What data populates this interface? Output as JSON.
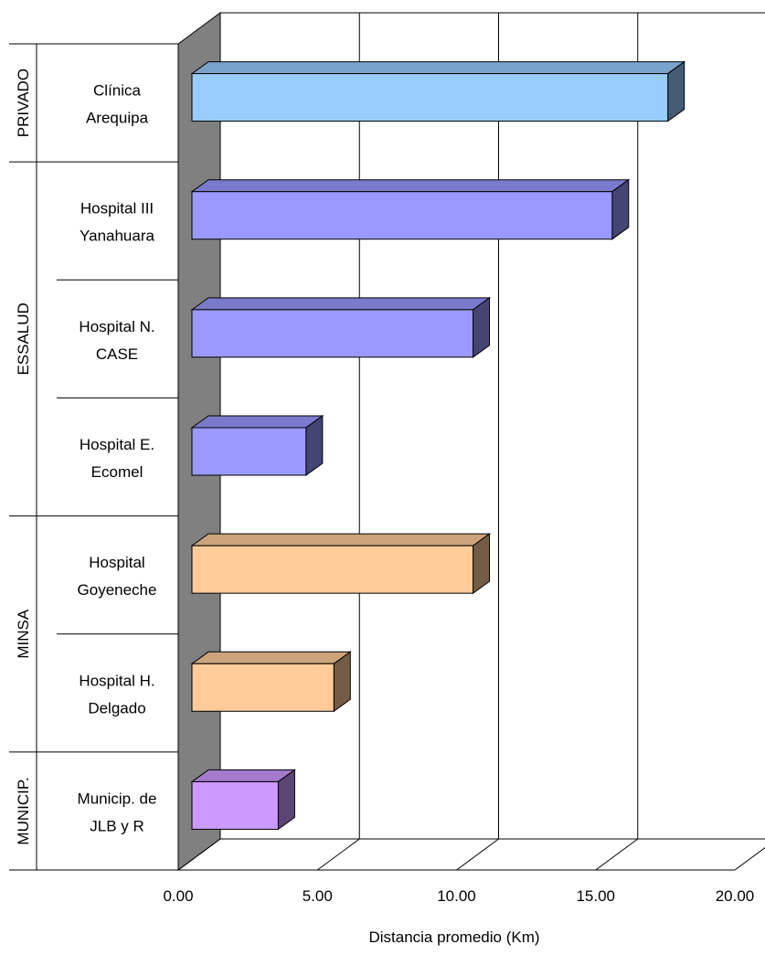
{
  "chart_data": {
    "type": "bar",
    "orientation": "horizontal",
    "three_d": true,
    "xlabel": "Distancia promedio (Km)",
    "xlim": [
      0,
      20
    ],
    "xticks": [
      "0.00",
      "5.00",
      "10.00",
      "15.00",
      "20.00"
    ],
    "grid": true,
    "categories": [
      {
        "line1": "Clínica",
        "line2": "Arequipa",
        "group": "PRIVADO",
        "value": 17.1,
        "color": "#99CCFF"
      },
      {
        "line1": "Hospital III",
        "line2": "Yanahuara",
        "group": "ESSALUD",
        "value": 15.1,
        "color": "#9999FF"
      },
      {
        "line1": "Hospital N.",
        "line2": "CASE",
        "group": "ESSALUD",
        "value": 10.1,
        "color": "#9999FF"
      },
      {
        "line1": "Hospital E.",
        "line2": "Ecomel",
        "group": "ESSALUD",
        "value": 4.1,
        "color": "#9999FF"
      },
      {
        "line1": "Hospital",
        "line2": "Goyeneche",
        "group": "MINSA",
        "value": 10.1,
        "color": "#FFCC99"
      },
      {
        "line1": "Hospital H.",
        "line2": "Delgado",
        "group": "MINSA",
        "value": 5.1,
        "color": "#FFCC99"
      },
      {
        "line1": "Municip. de",
        "line2": "JLB y R",
        "group": "MUNICIP.",
        "value": 3.1,
        "color": "#CC99FF"
      }
    ],
    "groups": [
      "PRIVADO",
      "ESSALUD",
      "MINSA",
      "MUNICIP."
    ]
  }
}
